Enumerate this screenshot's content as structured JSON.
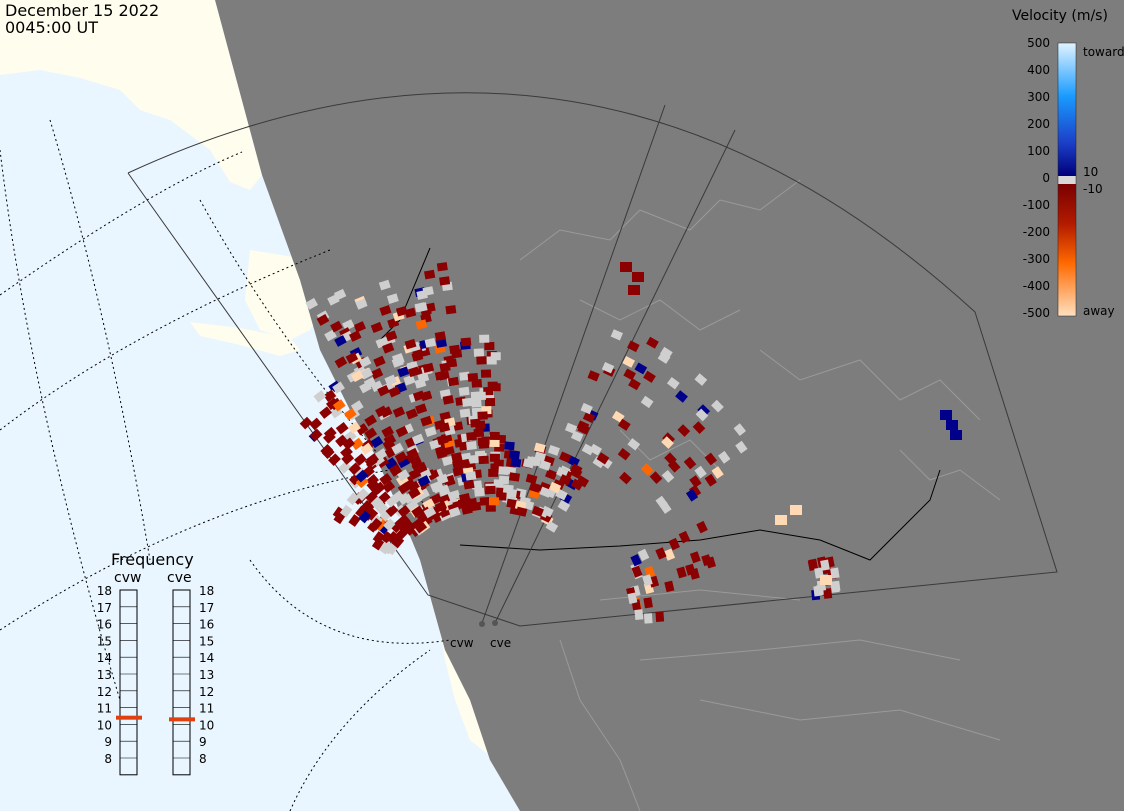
{
  "header": {
    "date": "December 15 2022",
    "time": "0045:00 UT"
  },
  "velocity_legend": {
    "title": "Velocity (m/s)",
    "ticks": [
      "500",
      "400",
      "300",
      "200",
      "100",
      "0",
      "-100",
      "-200",
      "-300",
      "-400",
      "-500"
    ],
    "toward_label": "toward",
    "away_label": "away",
    "upper_threshold": "10",
    "lower_threshold": "-10",
    "colors": {
      "toward_high": "#d8f0ff",
      "toward_mid": "#0a84ff",
      "toward_low": "#00008b",
      "away_low": "#8b0000",
      "away_mid": "#ff6600",
      "away_high": "#ffd9b3",
      "ground_scatter": "#cfcfcf"
    }
  },
  "frequency_panel": {
    "title": "Frequency",
    "left_radar": "cvw",
    "right_radar": "cve",
    "scale": [
      "18",
      "17",
      "16",
      "15",
      "14",
      "13",
      "12",
      "11",
      "10",
      "9",
      "8"
    ],
    "cvw_frequency_mhz": 10.9,
    "cve_frequency_mhz": 10.8
  },
  "radars": {
    "west": "cvw",
    "east": "cve"
  },
  "map": {
    "ocean_color": "#e9f6ff",
    "land_day_color": "#fffdee",
    "night_color": "#7d7d7d"
  }
}
